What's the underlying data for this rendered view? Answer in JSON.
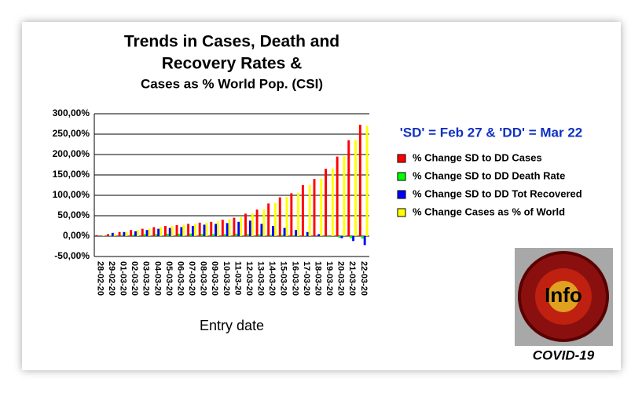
{
  "chart_data": {
    "type": "bar",
    "title": [
      "Trends in Cases, Death and",
      "Recovery Rates &",
      "Cases as % World Pop. (CSI)"
    ],
    "x_label": "Entry date",
    "annotation": "'SD' = Feb 27 & 'DD' = Mar 22",
    "image_text": "Info",
    "image_caption": "COVID-19",
    "categories": [
      "28-02-20",
      "29-02-20",
      "01-03-20",
      "02-03-20",
      "03-03-20",
      "04-03-20",
      "05-03-20",
      "06-03-20",
      "07-03-20",
      "08-03-20",
      "09-03-20",
      "10-03-20",
      "11-03-20",
      "12-03-20",
      "13-03-20",
      "14-03-20",
      "15-03-20",
      "16-03-20",
      "17-03-20",
      "18-03-20",
      "19-03-20",
      "20-03-20",
      "21-03-20",
      "22-03-20"
    ],
    "series": [
      {
        "name": "% Change SD to DD Cases",
        "color": "#ff0000",
        "values": [
          2,
          5,
          10,
          15,
          18,
          22,
          25,
          27,
          30,
          33,
          35,
          40,
          45,
          55,
          65,
          80,
          95,
          105,
          125,
          140,
          165,
          195,
          235,
          273
        ]
      },
      {
        "name": "% Change SD to DD Death Rate",
        "color": "#00ff00",
        "values": [
          0,
          1,
          2,
          3,
          5,
          5,
          6,
          6,
          6,
          5,
          5,
          5,
          6,
          5,
          4,
          3,
          3,
          2,
          1,
          0,
          -2,
          -4,
          -5,
          -6
        ]
      },
      {
        "name": "% Change SD to DD Tot Recovered",
        "color": "#0000ff",
        "values": [
          0,
          8,
          10,
          12,
          15,
          18,
          20,
          22,
          25,
          28,
          30,
          32,
          35,
          38,
          30,
          25,
          20,
          15,
          10,
          5,
          0,
          -5,
          -12,
          -22
        ]
      },
      {
        "name": "% Change Cases as % of World",
        "color": "#ffff00",
        "values": [
          2,
          5,
          10,
          15,
          18,
          22,
          25,
          28,
          30,
          33,
          36,
          41,
          46,
          56,
          66,
          81,
          96,
          106,
          126,
          141,
          166,
          196,
          236,
          270
        ]
      }
    ],
    "ylim": [
      -50,
      300
    ],
    "yticks": [
      {
        "value": -50,
        "label": "-50,00%"
      },
      {
        "value": 0,
        "label": "0,00%"
      },
      {
        "value": 50,
        "label": "50,00%"
      },
      {
        "value": 100,
        "label": "100,00%"
      },
      {
        "value": 150,
        "label": "150,00%"
      },
      {
        "value": 200,
        "label": "200,00%"
      },
      {
        "value": 250,
        "label": "250,00%"
      },
      {
        "value": 300,
        "label": "300,00%"
      }
    ],
    "grid": true
  }
}
